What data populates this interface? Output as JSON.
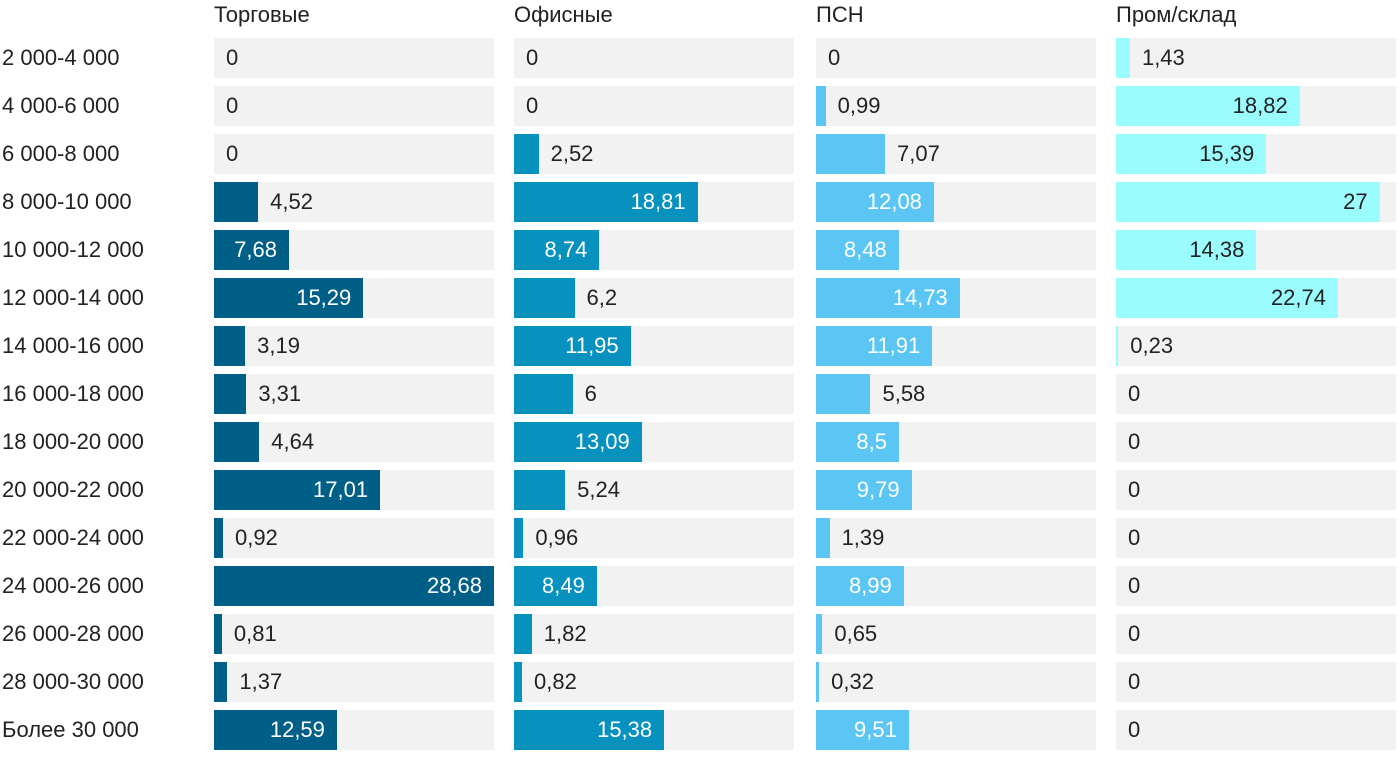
{
  "chart_data": {
    "type": "bar",
    "orientation": "horizontal",
    "layout": "small-multiples",
    "title": "",
    "categories": [
      "2 000-4 000",
      "4 000-6 000",
      "6 000-8 000",
      "8 000-10 000",
      "10 000-12 000",
      "12 000-14 000",
      "14 000-16 000",
      "16 000-18 000",
      "18 000-20 000",
      "20 000-22 000",
      "22 000-24 000",
      "24 000-26 000",
      "26 000-28 000",
      "28 000-30 000",
      "Более 30 000"
    ],
    "xlim": [
      0,
      28.68
    ],
    "series": [
      {
        "name": "Торговые",
        "color": "#005f87",
        "values": [
          0,
          0,
          0,
          4.52,
          7.68,
          15.29,
          3.19,
          3.31,
          4.64,
          17.01,
          0.92,
          28.68,
          0.81,
          1.37,
          12.59
        ],
        "labels": [
          "0",
          "0",
          "0",
          "4,52",
          "7,68",
          "15,29",
          "3,19",
          "3,31",
          "4,64",
          "17,01",
          "0,92",
          "28,68",
          "0,81",
          "1,37",
          "12,59"
        ]
      },
      {
        "name": "Офисные",
        "color": "#0691be",
        "values": [
          0,
          0,
          2.52,
          18.81,
          8.74,
          6.2,
          11.95,
          6,
          13.09,
          5.24,
          0.96,
          8.49,
          1.82,
          0.82,
          15.38
        ],
        "labels": [
          "0",
          "0",
          "2,52",
          "18,81",
          "8,74",
          "6,2",
          "11,95",
          "6",
          "13,09",
          "5,24",
          "0,96",
          "8,49",
          "1,82",
          "0,82",
          "15,38"
        ]
      },
      {
        "name": "ПСН",
        "color": "#5bc6f3",
        "values": [
          0,
          0.99,
          7.07,
          12.08,
          8.48,
          14.73,
          11.91,
          5.58,
          8.5,
          9.79,
          1.39,
          8.99,
          0.65,
          0.32,
          9.51
        ],
        "labels": [
          "0",
          "0,99",
          "7,07",
          "12,08",
          "8,48",
          "14,73",
          "11,91",
          "5,58",
          "8,5",
          "9,79",
          "1,39",
          "8,99",
          "0,65",
          "0,32",
          "9,51"
        ]
      },
      {
        "name": "Пром/склад",
        "color": "#9afcfd",
        "values": [
          1.43,
          18.82,
          15.39,
          27,
          14.38,
          22.74,
          0.23,
          0,
          0,
          0,
          0,
          0,
          0,
          0,
          0
        ],
        "labels": [
          "1,43",
          "18,82",
          "15,39",
          "27",
          "14,38",
          "22,74",
          "0,23",
          "0",
          "0",
          "0",
          "0",
          "0",
          "0",
          "0",
          "0"
        ]
      }
    ],
    "grid": false,
    "legend": "none"
  }
}
